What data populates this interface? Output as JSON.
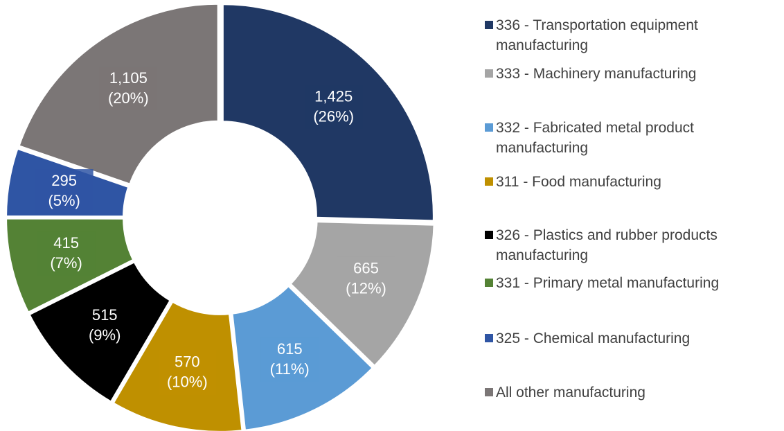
{
  "chart_data": {
    "type": "donut",
    "categories": [
      "336 - Transportation equipment manufacturing",
      "333 - Machinery manufacturing",
      "332 - Fabricated metal product manufacturing",
      "311 - Food manufacturing",
      "326 - Plastics and rubber products manufacturing",
      "331 - Primary metal manufacturing",
      "325 - Chemical manufacturing",
      "All other manufacturing"
    ],
    "values": [
      1425,
      665,
      615,
      570,
      515,
      415,
      295,
      1105
    ],
    "value_labels": [
      "1,425",
      "665",
      "615",
      "570",
      "515",
      "415",
      "295",
      "1,105"
    ],
    "percent_labels": [
      "(26%)",
      "(12%)",
      "(11%)",
      "(10%)",
      "(9%)",
      "(7%)",
      "(5%)",
      "(20%)"
    ],
    "colors": [
      "#203864",
      "#a5a5a5",
      "#5b9bd5",
      "#bf9000",
      "#000000",
      "#548235",
      "#2f55a4",
      "#7b7676"
    ],
    "legend": "right"
  }
}
